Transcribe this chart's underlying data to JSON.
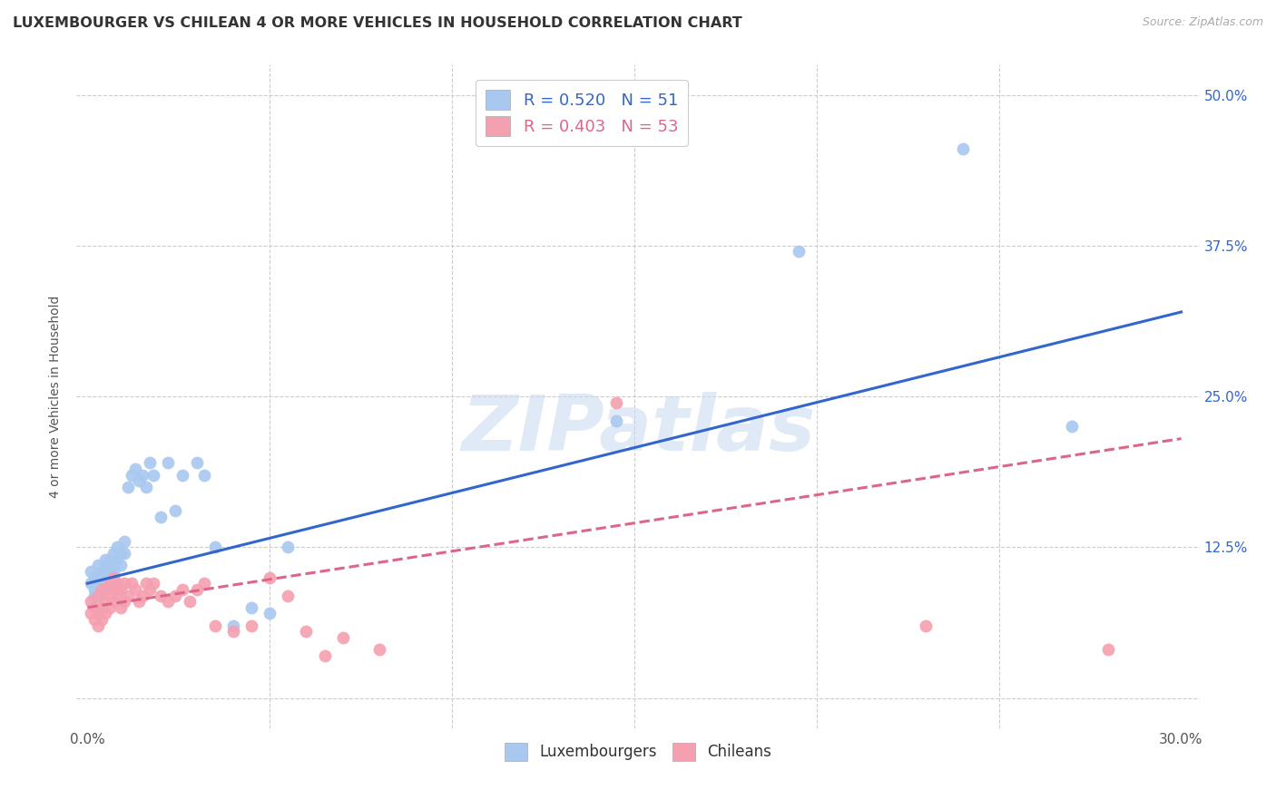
{
  "title": "LUXEMBOURGER VS CHILEAN 4 OR MORE VEHICLES IN HOUSEHOLD CORRELATION CHART",
  "source": "Source: ZipAtlas.com",
  "ylabel": "4 or more Vehicles in Household",
  "ytick_labels": [
    "",
    "12.5%",
    "25.0%",
    "37.5%",
    "50.0%"
  ],
  "ytick_values": [
    0.0,
    0.125,
    0.25,
    0.375,
    0.5
  ],
  "xlim": [
    -0.003,
    0.305
  ],
  "ylim": [
    -0.025,
    0.525
  ],
  "watermark": "ZIPatlas",
  "legend_lux_R": "R = 0.520",
  "legend_lux_N": "N = 51",
  "legend_chil_R": "R = 0.403",
  "legend_chil_N": "N = 53",
  "lux_color": "#a8c8f0",
  "chil_color": "#f4a0b0",
  "lux_line_color": "#3366cc",
  "chil_line_color": "#dd6688",
  "background_color": "#ffffff",
  "grid_color": "#cccccc",
  "lux_x": [
    0.001,
    0.001,
    0.002,
    0.002,
    0.002,
    0.003,
    0.003,
    0.003,
    0.003,
    0.004,
    0.004,
    0.004,
    0.005,
    0.005,
    0.005,
    0.005,
    0.006,
    0.006,
    0.006,
    0.007,
    0.007,
    0.007,
    0.008,
    0.008,
    0.009,
    0.009,
    0.01,
    0.01,
    0.011,
    0.012,
    0.013,
    0.014,
    0.015,
    0.016,
    0.017,
    0.018,
    0.02,
    0.022,
    0.024,
    0.026,
    0.03,
    0.032,
    0.035,
    0.04,
    0.045,
    0.05,
    0.055,
    0.145,
    0.195,
    0.24,
    0.27
  ],
  "lux_y": [
    0.095,
    0.105,
    0.085,
    0.09,
    0.1,
    0.085,
    0.095,
    0.1,
    0.11,
    0.09,
    0.095,
    0.105,
    0.1,
    0.105,
    0.11,
    0.115,
    0.1,
    0.105,
    0.115,
    0.105,
    0.11,
    0.12,
    0.115,
    0.125,
    0.11,
    0.12,
    0.12,
    0.13,
    0.175,
    0.185,
    0.19,
    0.18,
    0.185,
    0.175,
    0.195,
    0.185,
    0.15,
    0.195,
    0.155,
    0.185,
    0.195,
    0.185,
    0.125,
    0.06,
    0.075,
    0.07,
    0.125,
    0.23,
    0.37,
    0.455,
    0.225
  ],
  "chil_x": [
    0.001,
    0.001,
    0.002,
    0.002,
    0.003,
    0.003,
    0.003,
    0.004,
    0.004,
    0.004,
    0.005,
    0.005,
    0.005,
    0.006,
    0.006,
    0.006,
    0.007,
    0.007,
    0.007,
    0.008,
    0.008,
    0.008,
    0.009,
    0.009,
    0.01,
    0.01,
    0.011,
    0.012,
    0.013,
    0.014,
    0.015,
    0.016,
    0.017,
    0.018,
    0.02,
    0.022,
    0.024,
    0.026,
    0.028,
    0.03,
    0.032,
    0.035,
    0.04,
    0.045,
    0.05,
    0.055,
    0.06,
    0.065,
    0.07,
    0.08,
    0.145,
    0.23,
    0.28
  ],
  "chil_y": [
    0.07,
    0.08,
    0.065,
    0.075,
    0.06,
    0.07,
    0.085,
    0.065,
    0.075,
    0.09,
    0.07,
    0.08,
    0.09,
    0.075,
    0.085,
    0.095,
    0.08,
    0.09,
    0.1,
    0.085,
    0.09,
    0.095,
    0.075,
    0.09,
    0.08,
    0.095,
    0.085,
    0.095,
    0.09,
    0.08,
    0.085,
    0.095,
    0.09,
    0.095,
    0.085,
    0.08,
    0.085,
    0.09,
    0.08,
    0.09,
    0.095,
    0.06,
    0.055,
    0.06,
    0.1,
    0.085,
    0.055,
    0.035,
    0.05,
    0.04,
    0.245,
    0.06,
    0.04
  ],
  "lux_line_x": [
    0.0,
    0.3
  ],
  "lux_line_y": [
    0.095,
    0.32
  ],
  "chil_line_x": [
    0.0,
    0.3
  ],
  "chil_line_y": [
    0.075,
    0.215
  ]
}
